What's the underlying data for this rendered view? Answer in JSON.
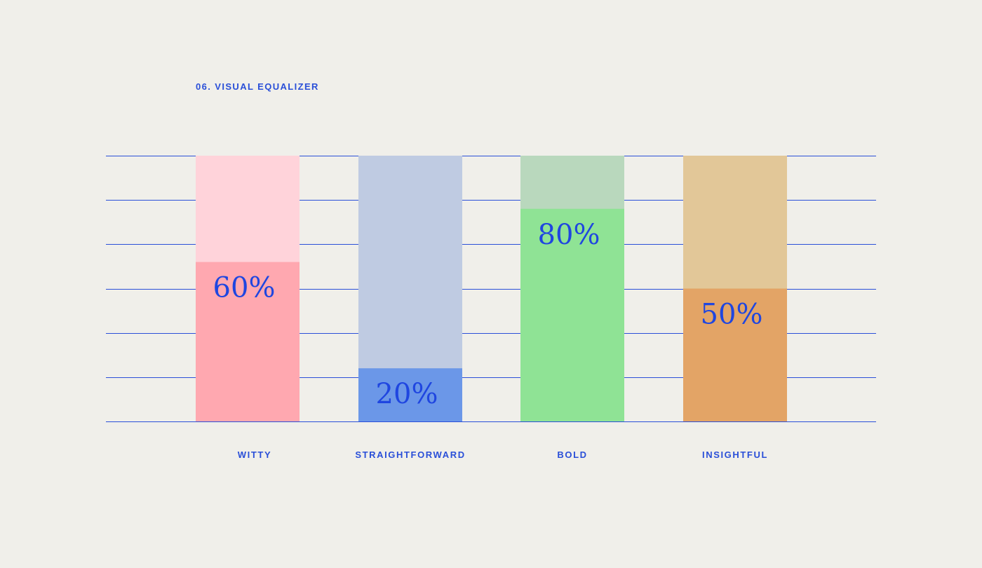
{
  "title": "06. VISUAL EQUALIZER",
  "chart_data": {
    "type": "bar",
    "title": "06. VISUAL EQUALIZER",
    "categories": [
      "WITTY",
      "STRAIGHTFORWARD",
      "BOLD",
      "INSIGHTFUL"
    ],
    "values": [
      60,
      20,
      80,
      50
    ],
    "value_labels": [
      "60%",
      "20%",
      "80%",
      "50%"
    ],
    "unit": "%",
    "ylim": [
      0,
      100
    ],
    "gridlines": [
      0,
      16.7,
      33.3,
      50,
      66.7,
      83.3,
      100
    ],
    "grid": true,
    "xlabel": "",
    "ylabel": "",
    "colors": {
      "fill": [
        "#ffa8b0",
        "#6b97e8",
        "#8fe395",
        "#e3a466"
      ],
      "track": [
        "#ffd3da",
        "#bfcbe2",
        "#b9d8bd",
        "#e2c798"
      ],
      "grid": "#2a4fd8",
      "text": "#1f46e0",
      "background": "#f0efea"
    }
  }
}
